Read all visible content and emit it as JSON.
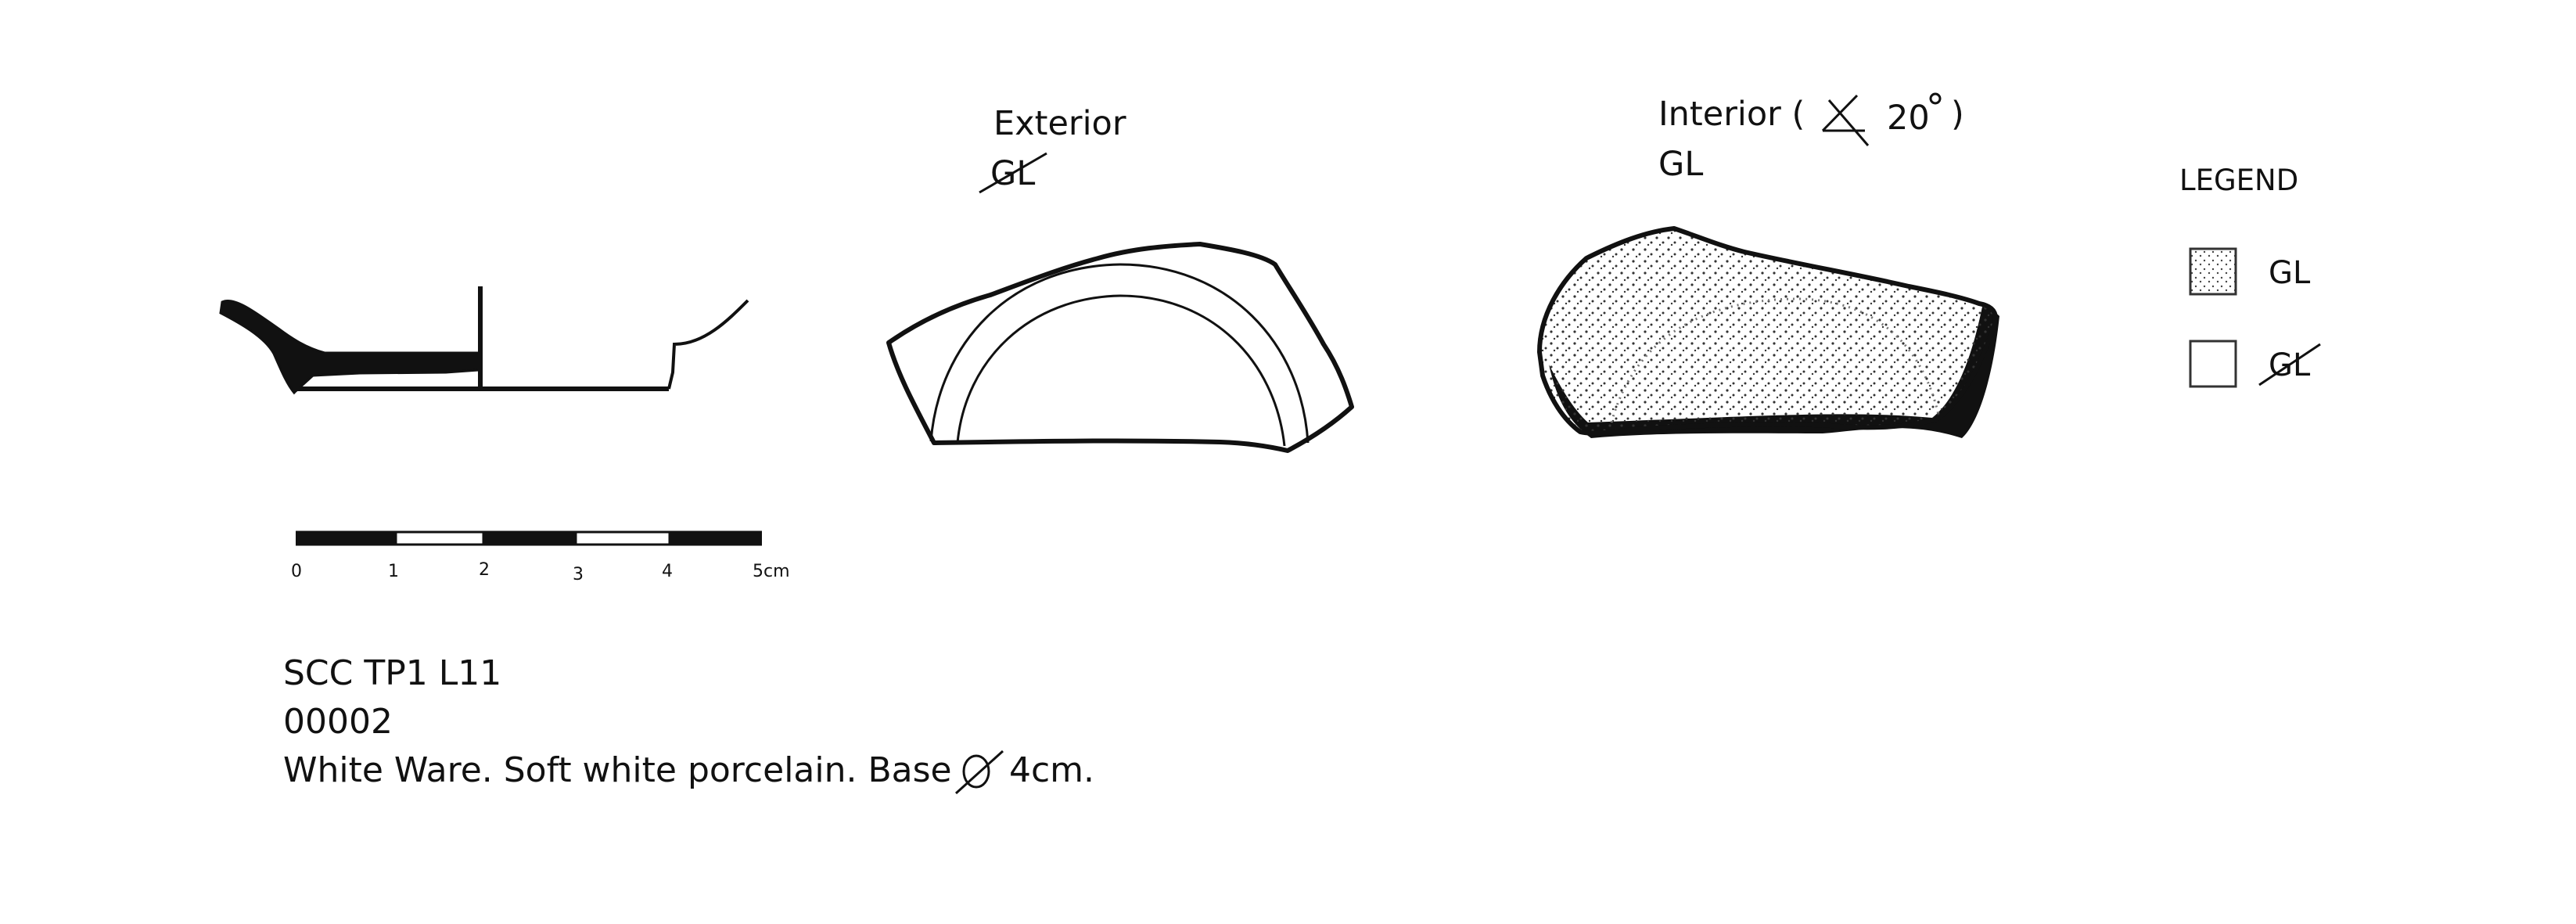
{
  "exterior": {
    "title": "Exterior",
    "glaze": "GL"
  },
  "interior": {
    "title_prefix": "Interior (",
    "angle": "20",
    "title_suffix": ")",
    "glaze": "GL"
  },
  "legend": {
    "title": "LEGEND",
    "items": [
      {
        "label": "GL",
        "fill": "stippled",
        "struck_through": false
      },
      {
        "label": "GL",
        "fill": "plain",
        "struck_through": true
      }
    ]
  },
  "scale_bar": {
    "ticks": [
      "0",
      "1",
      "2",
      "3",
      "4",
      "5cm"
    ]
  },
  "caption": {
    "site": "SCC TP1 L11",
    "number": "00002",
    "description_prefix": "White Ware. Soft white porcelain. Base",
    "description_value": "4cm."
  }
}
